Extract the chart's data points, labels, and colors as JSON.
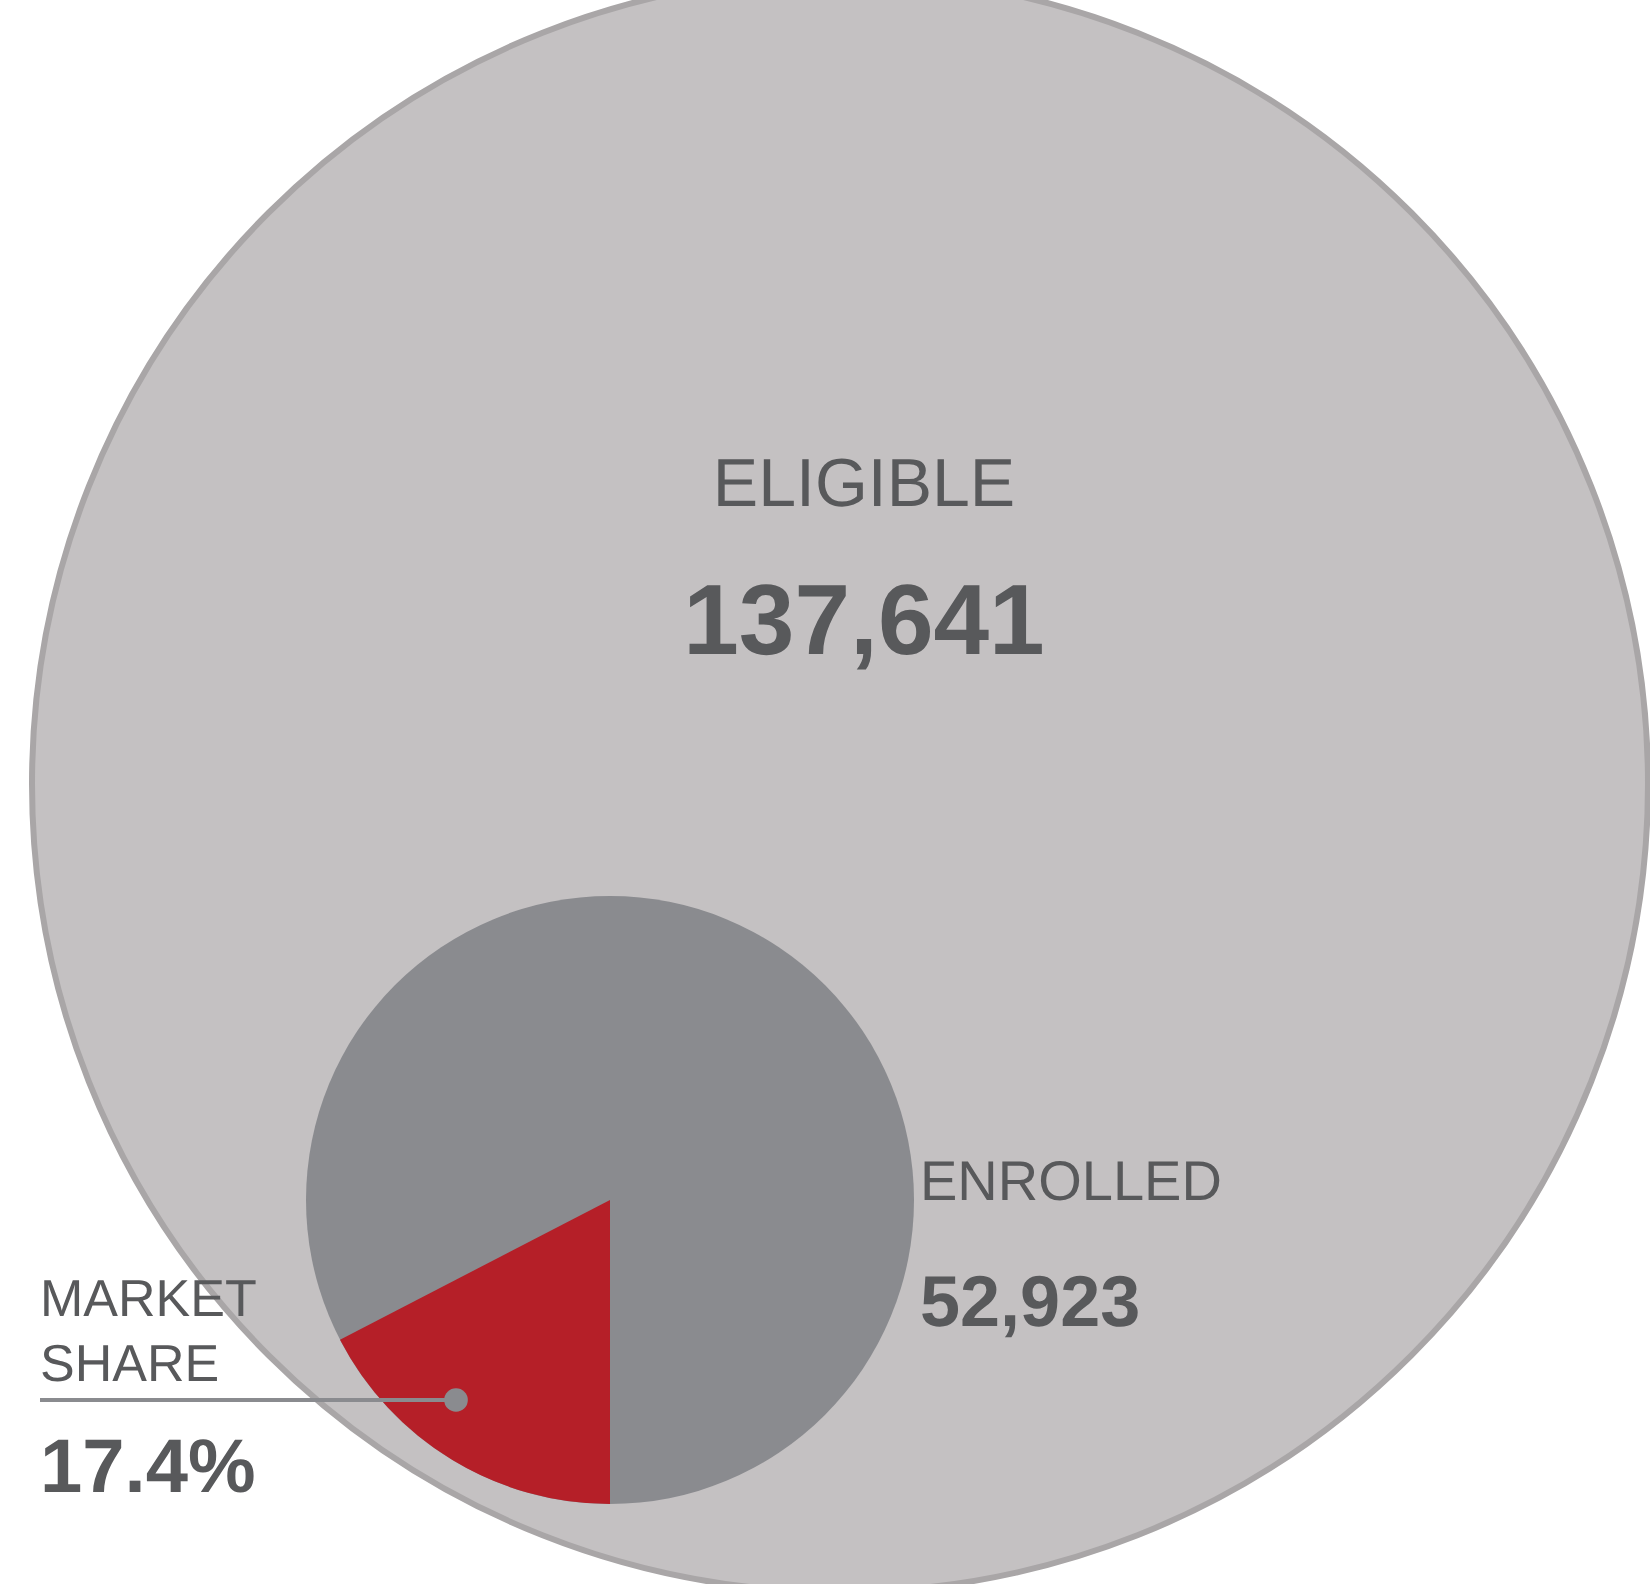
{
  "chart_data": {
    "type": "other",
    "categories": [
      "ELIGIBLE",
      "ENROLLED",
      "MARKET SHARE"
    ],
    "values": [
      137641,
      52923,
      17.4
    ],
    "value_labels": [
      "137,641",
      "52,923",
      "17.4%"
    ],
    "colors": [
      "#c4c1c2",
      "#8a8b8f",
      "#b51f28"
    ]
  }
}
